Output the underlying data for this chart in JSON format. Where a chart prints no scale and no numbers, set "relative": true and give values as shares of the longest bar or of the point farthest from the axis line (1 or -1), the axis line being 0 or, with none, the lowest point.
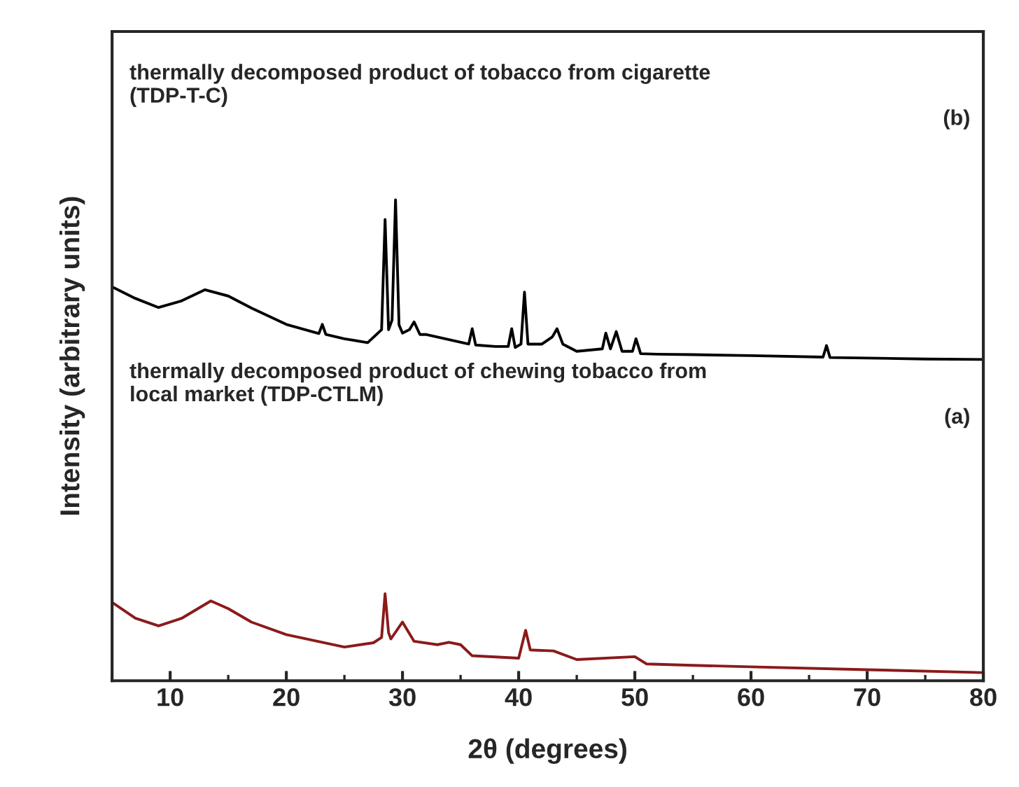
{
  "chart_data": {
    "type": "line",
    "relative": true,
    "xlabel": "2θ (degrees)",
    "ylabel": "Intensity (arbitrary units)",
    "xlim": [
      5,
      80
    ],
    "xticks": [
      10,
      20,
      30,
      40,
      50,
      60,
      70,
      80
    ],
    "tick_labels": "x",
    "grid": false,
    "legend": false,
    "marker": "none",
    "line_style": "solid",
    "annotations": [
      "thermally decomposed product of tobacco from cigarette\n(TDP-T-C)",
      "(b)",
      "thermally decomposed product of chewing tobacco from\nlocal market (TDP-CTLM)",
      "(a)"
    ],
    "series": [
      {
        "color": "#000000",
        "x": [
          5,
          7,
          9,
          11,
          13,
          15,
          17,
          20,
          22.8,
          23.1,
          23.4,
          25,
          27,
          28.2,
          28.5,
          28.8,
          29.1,
          29.4,
          29.7,
          30,
          30.6,
          31,
          31.5,
          32,
          35.7,
          36,
          36.3,
          38,
          39.1,
          39.4,
          39.7,
          40.2,
          40.5,
          40.8,
          42,
          42.9,
          43.3,
          43.8,
          45,
          47.2,
          47.5,
          47.9,
          48.4,
          48.9,
          49.8,
          50.1,
          50.5,
          52,
          55,
          60,
          66.2,
          66.5,
          66.8,
          70,
          75,
          80
        ],
        "values": [
          0.819,
          0.795,
          0.776,
          0.79,
          0.813,
          0.8,
          0.775,
          0.741,
          0.722,
          0.741,
          0.72,
          0.711,
          0.703,
          0.73,
          0.959,
          0.73,
          0.75,
          1.0,
          0.74,
          0.723,
          0.73,
          0.746,
          0.72,
          0.72,
          0.7,
          0.732,
          0.698,
          0.695,
          0.695,
          0.732,
          0.693,
          0.7,
          0.808,
          0.7,
          0.7,
          0.715,
          0.732,
          0.7,
          0.685,
          0.69,
          0.723,
          0.69,
          0.726,
          0.685,
          0.685,
          0.711,
          0.68,
          0.679,
          0.678,
          0.676,
          0.673,
          0.697,
          0.672,
          0.671,
          0.669,
          0.668
        ]
      },
      {
        "color": "#8b1a1a",
        "x": [
          5,
          7,
          9,
          11,
          13.5,
          15,
          17,
          20,
          25,
          27.5,
          28.2,
          28.5,
          28.8,
          29,
          30,
          31,
          33,
          34,
          35,
          36,
          40,
          40.6,
          41,
          43,
          45,
          50,
          51,
          55,
          60,
          70,
          80
        ],
        "values": [
          0.163,
          0.13,
          0.114,
          0.13,
          0.166,
          0.15,
          0.122,
          0.096,
          0.07,
          0.079,
          0.09,
          0.181,
          0.1,
          0.087,
          0.122,
          0.082,
          0.075,
          0.08,
          0.075,
          0.052,
          0.047,
          0.105,
          0.064,
          0.062,
          0.044,
          0.05,
          0.035,
          0.032,
          0.029,
          0.023,
          0.017
        ]
      }
    ]
  }
}
